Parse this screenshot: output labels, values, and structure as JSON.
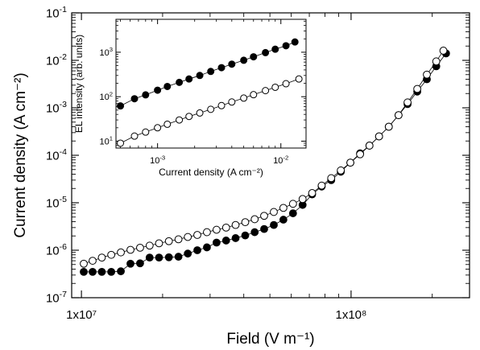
{
  "chart_data": [
    {
      "type": "scatter",
      "xlabel": "Field (V m⁻¹)",
      "ylabel": "Current density (A cm⁻²)",
      "xscale": "log",
      "yscale": "log",
      "xlim": [
        9200000.0,
        275000000.0
      ],
      "ylim": [
        1e-07,
        0.1
      ],
      "x_ticks": [
        {
          "value": 10000000.0,
          "label": "1x10⁷"
        },
        {
          "value": 100000000.0,
          "label": "1x10⁸"
        }
      ],
      "y_ticks": [
        {
          "value": 0.1,
          "base": "10",
          "exp": "-1"
        },
        {
          "value": 0.01,
          "base": "10",
          "exp": "-2"
        },
        {
          "value": 0.001,
          "base": "10",
          "exp": "-3"
        },
        {
          "value": 0.0001,
          "base": "10",
          "exp": "-4"
        },
        {
          "value": 1e-05,
          "base": "10",
          "exp": "-5"
        },
        {
          "value": 1e-06,
          "base": "10",
          "exp": "-6"
        },
        {
          "value": 1e-07,
          "base": "10",
          "exp": "-7"
        }
      ],
      "grid": false,
      "series": [
        {
          "marker": "filled-circle",
          "color": "#000000",
          "x": [
            10200000.0,
            11000000.0,
            11900000.0,
            12900000.0,
            14000000.0,
            15200000.0,
            16500000.0,
            17900000.0,
            19400000.0,
            21100000.0,
            22900000.0,
            24800000.0,
            26900000.0,
            29200000.0,
            31700000.0,
            34400000.0,
            37300000.0,
            40500000.0,
            43900000.0,
            47600000.0,
            51700000.0,
            56100000.0,
            60900000.0,
            66100000.0,
            71700000.0,
            77800000.0,
            84400000.0,
            91600000.0,
            99400000.0,
            108000000.0,
            117000000.0,
            127000000.0,
            138000000.0,
            150000000.0,
            162000000.0,
            176000000.0,
            191000000.0,
            207000000.0,
            225000000.0
          ],
          "y": [
            3.5e-07,
            3.5e-07,
            3.5e-07,
            3.5e-07,
            3.6e-07,
            5.2e-07,
            5.3e-07,
            7e-07,
            7e-07,
            7.1e-07,
            7.3e-07,
            8.5e-07,
            1e-06,
            1.15e-06,
            1.45e-06,
            1.6e-06,
            1.8e-06,
            2.05e-06,
            2.4e-06,
            2.8e-06,
            3.4e-06,
            4.4e-06,
            6e-06,
            9e-06,
            1.5e-05,
            2.2e-05,
            3e-05,
            4.5e-05,
            7e-05,
            0.00011,
            0.00016,
            0.00025,
            0.0004,
            0.0007,
            0.0012,
            0.0022,
            0.004,
            0.0075,
            0.014
          ]
        },
        {
          "marker": "open-circle",
          "color": "#000000",
          "x": [
            10200000.0,
            11000000.0,
            11900000.0,
            12900000.0,
            14000000.0,
            15200000.0,
            16500000.0,
            17900000.0,
            19400000.0,
            21100000.0,
            22900000.0,
            24800000.0,
            26900000.0,
            29200000.0,
            31700000.0,
            34400000.0,
            37300000.0,
            40500000.0,
            43900000.0,
            47600000.0,
            51700000.0,
            56100000.0,
            60900000.0,
            66100000.0,
            71700000.0,
            77800000.0,
            84400000.0,
            91600000.0,
            99400000.0,
            108000000.0,
            117000000.0,
            127000000.0,
            138000000.0,
            150000000.0,
            162000000.0,
            176000000.0,
            191000000.0,
            207000000.0,
            220000000.0
          ],
          "y": [
            5.2e-07,
            6e-07,
            7e-07,
            8e-07,
            9e-07,
            1.02e-06,
            1.13e-06,
            1.25e-06,
            1.4e-06,
            1.55e-06,
            1.7e-06,
            1.9e-06,
            2.1e-06,
            2.4e-06,
            2.7e-06,
            3e-06,
            3.4e-06,
            3.9e-06,
            4.5e-06,
            5.3e-06,
            6.4e-06,
            7.8e-06,
            9.5e-06,
            1.2e-05,
            1.6e-05,
            2.3e-05,
            3.3e-05,
            4.8e-05,
            7e-05,
            0.000105,
            0.00016,
            0.00025,
            0.0004,
            0.0007,
            0.0013,
            0.0025,
            0.005,
            0.0095,
            0.016
          ]
        }
      ]
    },
    {
      "type": "scatter",
      "xlabel": "Current density (A cm⁻²)",
      "ylabel": "EL intensity (arb. units)",
      "xscale": "log",
      "yscale": "log",
      "xlim": [
        0.00046,
        0.016
      ],
      "ylim": [
        7,
        5500
      ],
      "x_ticks": [
        {
          "value": 0.001,
          "base": "10",
          "exp": "-3"
        },
        {
          "value": 0.01,
          "base": "10",
          "exp": "-2"
        }
      ],
      "y_ticks": [
        {
          "value": 10,
          "base": "10",
          "exp": "1"
        },
        {
          "value": 100,
          "base": "10",
          "exp": "2"
        },
        {
          "value": 1000,
          "base": "10",
          "exp": "3"
        }
      ],
      "grid": false,
      "series": [
        {
          "marker": "filled-circle",
          "color": "#000000",
          "x": [
            0.0005,
            0.00065,
            0.0008,
            0.001,
            0.0012,
            0.0015,
            0.0018,
            0.0022,
            0.0027,
            0.0033,
            0.004,
            0.005,
            0.006,
            0.0075,
            0.009,
            0.011,
            0.013
          ],
          "y": [
            62,
            90,
            110,
            140,
            170,
            210,
            250,
            300,
            370,
            450,
            540,
            660,
            790,
            980,
            1170,
            1400,
            1700
          ]
        },
        {
          "marker": "open-circle",
          "color": "#000000",
          "x": [
            0.0005,
            0.00065,
            0.0008,
            0.001,
            0.0012,
            0.0015,
            0.0018,
            0.0022,
            0.0027,
            0.0033,
            0.004,
            0.005,
            0.006,
            0.0075,
            0.009,
            0.011,
            0.014
          ],
          "y": [
            9,
            13,
            16,
            20,
            24,
            30,
            36,
            43,
            52,
            63,
            76,
            93,
            111,
            137,
            163,
            196,
            250
          ]
        }
      ]
    }
  ]
}
